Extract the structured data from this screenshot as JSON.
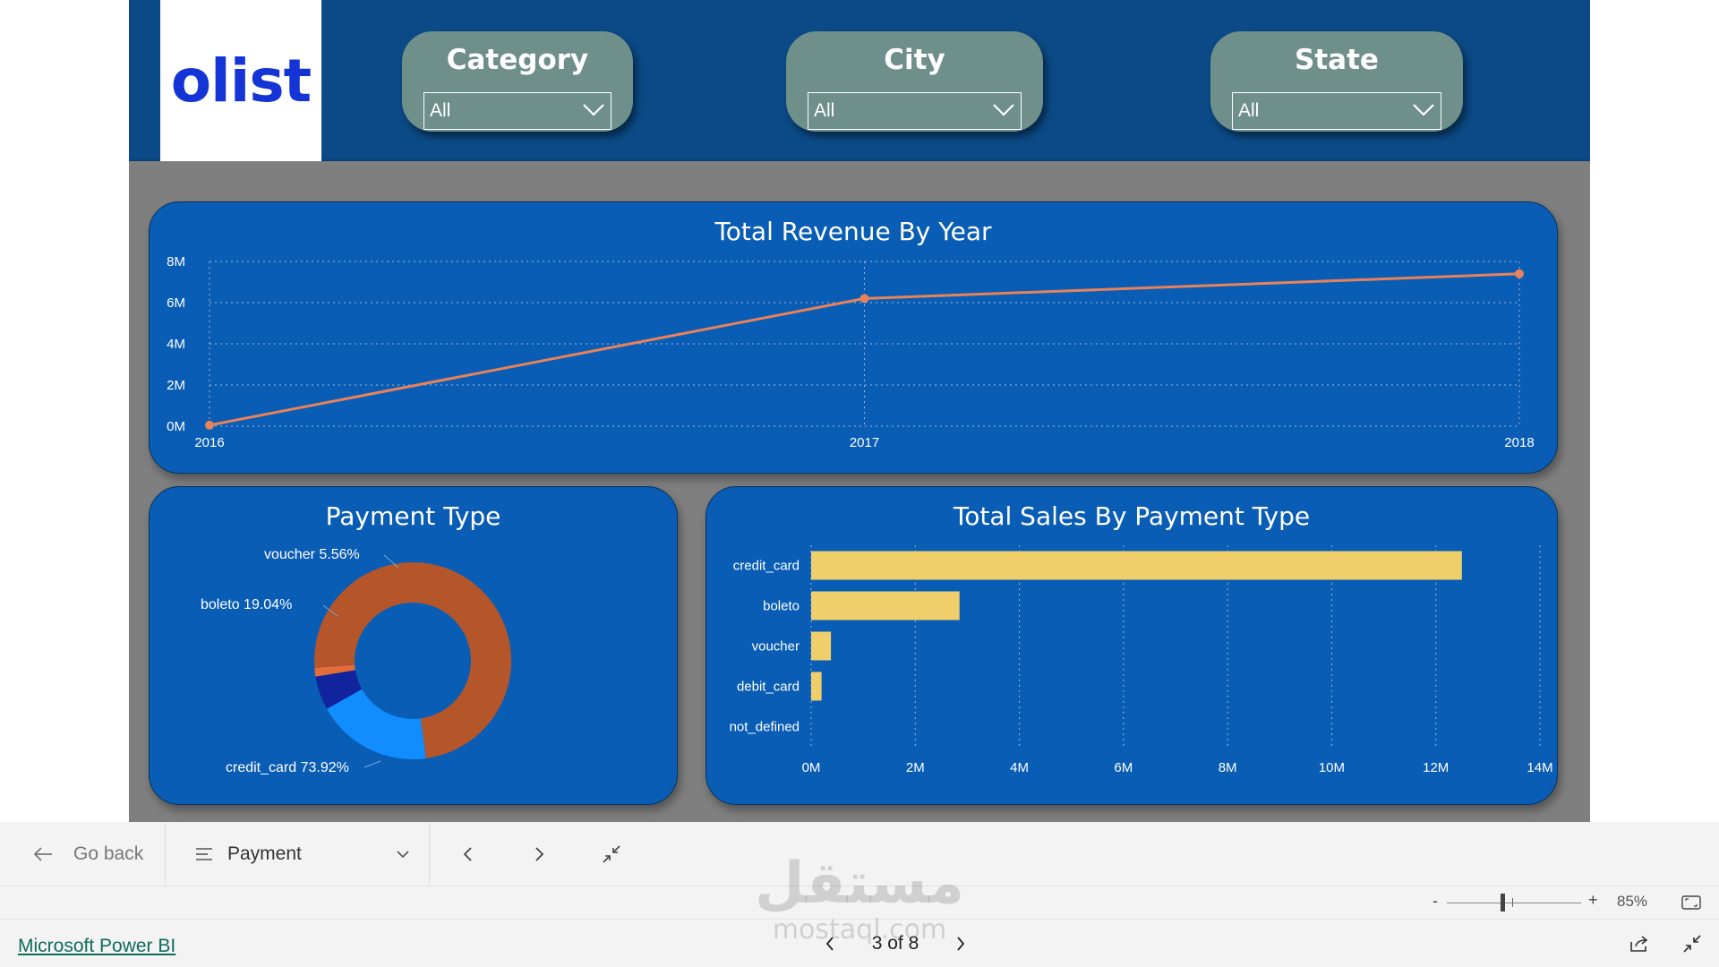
{
  "header": {
    "logo_text": "olist",
    "slicers": [
      {
        "title": "Category",
        "value": "All"
      },
      {
        "title": "City",
        "value": "All"
      },
      {
        "title": "State",
        "value": "All"
      }
    ]
  },
  "chart_data": [
    {
      "type": "line",
      "title": "Total Revenue By Year",
      "x": [
        "2016",
        "2017",
        "2018"
      ],
      "series": [
        {
          "values": [
            0.05,
            6.2,
            7.4
          ]
        }
      ],
      "yticks": [
        "0M",
        "2M",
        "4M",
        "6M",
        "8M"
      ],
      "ylim": [
        0,
        8
      ],
      "grid": true,
      "line_color": "#e8825a"
    },
    {
      "type": "pie",
      "title": "Payment Type",
      "donut": true,
      "slices": [
        {
          "label": "credit_card",
          "pct_label": "73.92%",
          "value": 73.92,
          "color": "#b5562a"
        },
        {
          "label": "boleto",
          "pct_label": "19.04%",
          "value": 19.04,
          "color": "#118dff"
        },
        {
          "label": "voucher",
          "pct_label": "5.56%",
          "value": 5.56,
          "color": "#12239e"
        },
        {
          "label": "debit_card",
          "pct_label": "",
          "value": 1.46,
          "color": "#e66c37"
        },
        {
          "label": "not_defined",
          "pct_label": "",
          "value": 0.02,
          "color": "#6b007b"
        }
      ]
    },
    {
      "type": "bar",
      "orientation": "horizontal",
      "title": "Total Sales By Payment Type",
      "categories": [
        "credit_card",
        "boleto",
        "voucher",
        "debit_card",
        "not_defined"
      ],
      "values": [
        12.5,
        2.85,
        0.38,
        0.2,
        0.0
      ],
      "xticks": [
        "0M",
        "2M",
        "4M",
        "6M",
        "8M",
        "10M",
        "12M",
        "14M"
      ],
      "xlim": [
        0,
        14
      ],
      "bar_color": "#f0cf6b"
    }
  ],
  "nav": {
    "go_back": "Go back",
    "page_select": "Payment",
    "zoom": "85%",
    "zoom_minus": "-",
    "zoom_plus": "+",
    "footer_link": "Microsoft Power BI",
    "pager": "3 of 8"
  },
  "watermark": {
    "line1": "مستقل",
    "line2": "mostaql.com"
  }
}
